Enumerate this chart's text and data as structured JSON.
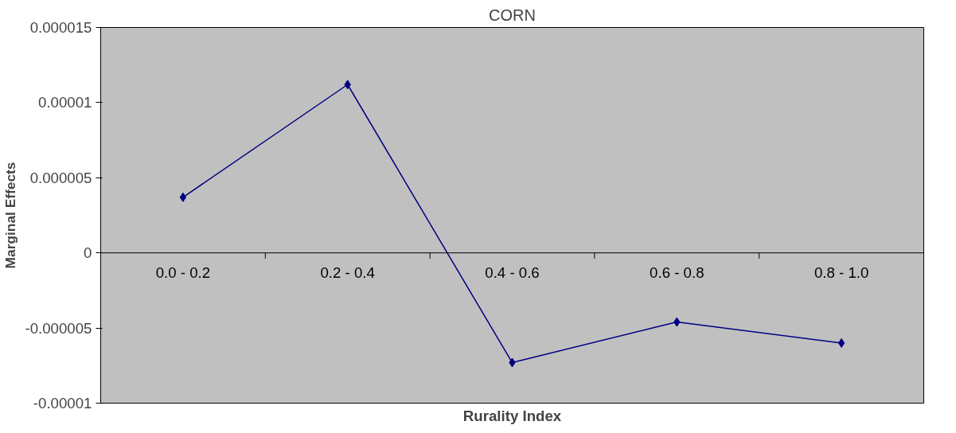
{
  "chart_data": {
    "type": "line",
    "title": "CORN",
    "xlabel": "Rurality Index",
    "ylabel": "Marginal Effects",
    "categories": [
      "0.0 - 0.2",
      "0.2 - 0.4",
      "0.4 - 0.6",
      "0.6 - 0.8",
      "0.8 - 1.0"
    ],
    "series": [
      {
        "color": "#000080",
        "values": [
          3.7e-06,
          1.12e-05,
          -7.3e-06,
          -4.6e-06,
          -6e-06
        ]
      }
    ],
    "ylim": [
      -1e-05,
      1.5e-05
    ],
    "yticks": [
      {
        "value": -1e-05,
        "label": "-0.00001"
      },
      {
        "value": -5e-06,
        "label": "-0.000005"
      },
      0,
      {
        "value": 5e-06,
        "label": "0.000005"
      },
      {
        "value": 1e-05,
        "label": "0.00001"
      },
      {
        "value": 1.5e-05,
        "label": "0.000015"
      }
    ],
    "grid": false,
    "marker": "diamond",
    "line_style": "solid"
  }
}
